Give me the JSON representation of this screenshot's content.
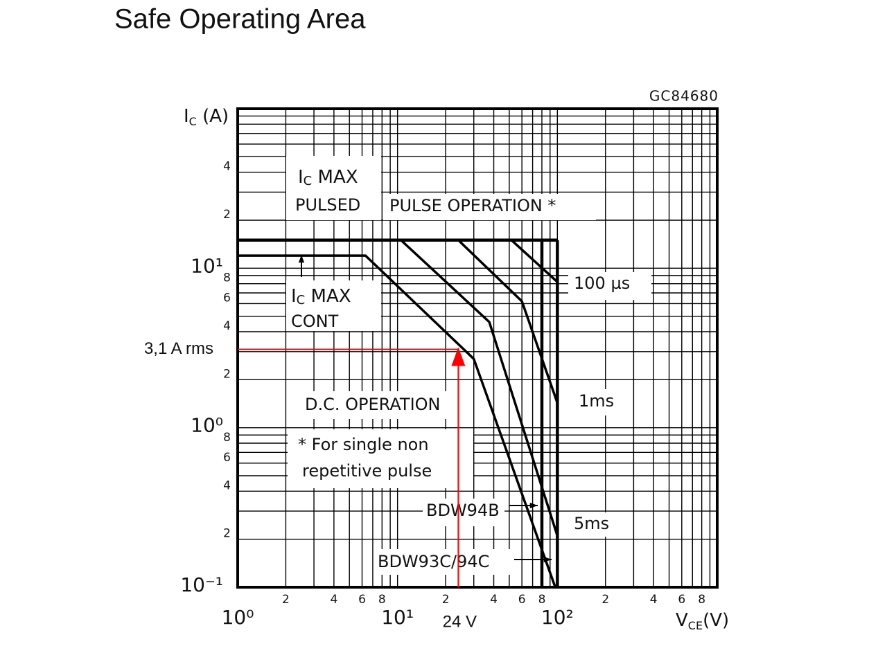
{
  "chart_data": {
    "type": "line",
    "title": "Safe Operating Area",
    "code": "GC84680",
    "ylabel": [
      "I",
      "C",
      " (A)"
    ],
    "xlabel": [
      "V",
      "CE",
      "(V)"
    ],
    "xscale": "log",
    "yscale": "log",
    "grid": true,
    "xlim": [
      1,
      1000
    ],
    "ylim": [
      0.1,
      100
    ],
    "xticks": [
      {
        "value": 1,
        "label": "10⁰"
      },
      2,
      4,
      6,
      8,
      {
        "value": 10,
        "label": "10¹"
      },
      {
        "value": 20,
        "label": "2"
      },
      {
        "value": 40,
        "label": "4"
      },
      {
        "value": 60,
        "label": "6"
      },
      {
        "value": 80,
        "label": "8"
      },
      {
        "value": 100,
        "label": "10²"
      },
      {
        "value": 200,
        "label": "2"
      },
      {
        "value": 400,
        "label": "4"
      },
      {
        "value": 600,
        "label": "6"
      },
      {
        "value": 800,
        "label": "8"
      }
    ],
    "xminor": [
      3,
      5,
      7,
      9,
      30,
      50,
      70,
      90,
      300,
      500,
      700,
      900
    ],
    "yticks": [
      {
        "value": 0.1,
        "label": "10⁻¹"
      },
      {
        "value": 0.2,
        "label": "2"
      },
      {
        "value": 0.4,
        "label": "4"
      },
      {
        "value": 0.6,
        "label": "6"
      },
      {
        "value": 0.8,
        "label": "8"
      },
      {
        "value": 1,
        "label": "10⁰"
      },
      2,
      4,
      6,
      8,
      {
        "value": 10,
        "label": "10¹"
      },
      {
        "value": 20,
        "label": "2"
      },
      {
        "value": 40,
        "label": "4"
      }
    ],
    "yminor": [
      0.3,
      0.5,
      0.7,
      0.9,
      3,
      5,
      7,
      9,
      30,
      50,
      60,
      70,
      80,
      90
    ],
    "series": [
      {
        "name": "100 µs",
        "color": "#000000",
        "x": [
          51.6,
          100
        ],
        "values": [
          15,
          8.2
        ]
      },
      {
        "name": "1ms",
        "color": "#000000",
        "x": [
          24,
          60,
          100
        ],
        "values": [
          15,
          6.2,
          1.43
        ]
      },
      {
        "name": "5ms",
        "color": "#000000",
        "x": [
          10.5,
          37.5,
          100
        ],
        "values": [
          15,
          4.6,
          0.21
        ]
      },
      {
        "name": "D.C. OPERATION",
        "color": "#000000",
        "x": [
          1,
          6.3,
          30,
          97
        ],
        "values": [
          12,
          12,
          2.7,
          0.1
        ]
      },
      {
        "name": "BDW94B",
        "color": "#000000",
        "x": [
          80,
          80
        ],
        "values": [
          15,
          0.1
        ]
      },
      {
        "name": "BDW93C/94C",
        "color": "#000000",
        "x": [
          100,
          100
        ],
        "values": [
          15,
          0.1
        ]
      },
      {
        "name": "PULSE OPERATION *",
        "color": "#000000",
        "x": [
          1,
          100
        ],
        "values": [
          15,
          15
        ]
      }
    ],
    "annotations": {
      "ic_max_pulsed": [
        "I",
        "C",
        " MAX",
        "PULSED"
      ],
      "ic_max_cont": [
        "I",
        "C",
        " MAX",
        "CONT"
      ],
      "single_pulse": [
        "* For single non",
        "repetitive pulse"
      ]
    },
    "operating_point": {
      "x": 24,
      "y": 3.1,
      "x_label": "24 V",
      "y_label": "3,1 A rms",
      "color": "#ff0000"
    }
  }
}
